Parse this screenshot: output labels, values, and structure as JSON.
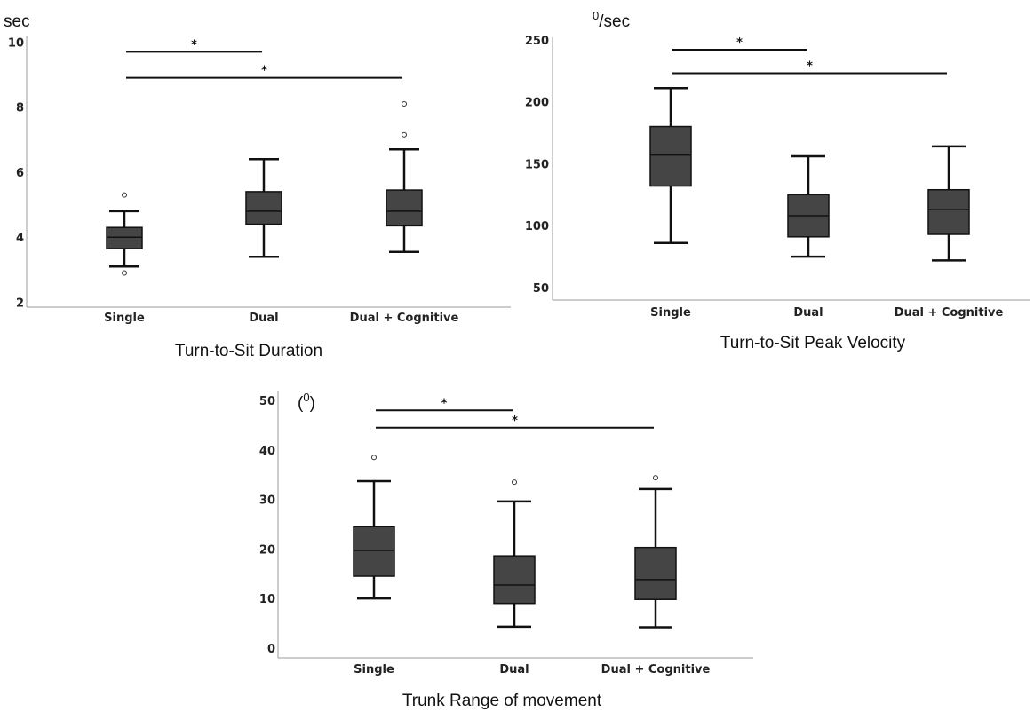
{
  "chart_data": [
    {
      "type": "box",
      "title": "Turn-to-Sit Duration",
      "unit_label": "sec",
      "unit_sup": "",
      "categories": [
        "Single",
        "Dual",
        "Dual + Cognitive"
      ],
      "ylim": [
        1.85,
        10.2
      ],
      "yticks": [
        2,
        4,
        6,
        8,
        10
      ],
      "grid": false,
      "boxes": [
        {
          "min": 3.1,
          "q1": 3.65,
          "median": 4.0,
          "q3": 4.3,
          "max": 4.8,
          "outliers": [
            5.3,
            2.9
          ]
        },
        {
          "min": 3.4,
          "q1": 4.4,
          "median": 4.8,
          "q3": 5.4,
          "max": 6.4,
          "outliers": []
        },
        {
          "min": 3.55,
          "q1": 4.35,
          "median": 4.8,
          "q3": 5.45,
          "max": 6.7,
          "outliers": [
            7.15,
            8.1
          ]
        }
      ],
      "significance": [
        {
          "from": 0,
          "to": 1,
          "label": "*",
          "y": 9.7
        },
        {
          "from": 0,
          "to": 2,
          "label": "*",
          "y": 8.9
        }
      ]
    },
    {
      "type": "box",
      "title": "Turn-to-Sit Peak Velocity",
      "unit_label": "/sec",
      "unit_sup": "0",
      "categories": [
        "Single",
        "Dual",
        "Dual + Cognitive"
      ],
      "ylim": [
        40,
        252
      ],
      "yticks": [
        50,
        100,
        150,
        200,
        250
      ],
      "grid": false,
      "boxes": [
        {
          "min": 86,
          "q1": 132,
          "median": 157,
          "q3": 180,
          "max": 211,
          "outliers": []
        },
        {
          "min": 75,
          "q1": 91,
          "median": 108,
          "q3": 125,
          "max": 156,
          "outliers": []
        },
        {
          "min": 72,
          "q1": 93,
          "median": 113,
          "q3": 129,
          "max": 164,
          "outliers": []
        }
      ],
      "significance": [
        {
          "from": 0,
          "to": 1,
          "label": "*",
          "y": 242
        },
        {
          "from": 0,
          "to": 2,
          "label": "*",
          "y": 223
        }
      ]
    },
    {
      "type": "box",
      "title": "Trunk Range of movement",
      "unit_label": ")",
      "unit_sup": "0",
      "unit_prefix": "(",
      "categories": [
        "Single",
        "Dual",
        "Dual + Cognitive"
      ],
      "ylim": [
        -2,
        52
      ],
      "yticks": [
        0,
        10,
        20,
        30,
        40,
        50
      ],
      "grid": false,
      "boxes": [
        {
          "min": 10,
          "q1": 14.5,
          "median": 19.7,
          "q3": 24.5,
          "max": 33.7,
          "outliers": [
            38.5
          ]
        },
        {
          "min": 4.3,
          "q1": 9,
          "median": 12.7,
          "q3": 18.6,
          "max": 29.6,
          "outliers": [
            33.5
          ]
        },
        {
          "min": 4.2,
          "q1": 9.8,
          "median": 13.8,
          "q3": 20.3,
          "max": 32.1,
          "outliers": [
            34.4
          ]
        }
      ],
      "significance": [
        {
          "from": 0,
          "to": 1,
          "label": "*",
          "y": 48
        },
        {
          "from": 0,
          "to": 2,
          "label": "*",
          "y": 44.5
        }
      ]
    }
  ]
}
